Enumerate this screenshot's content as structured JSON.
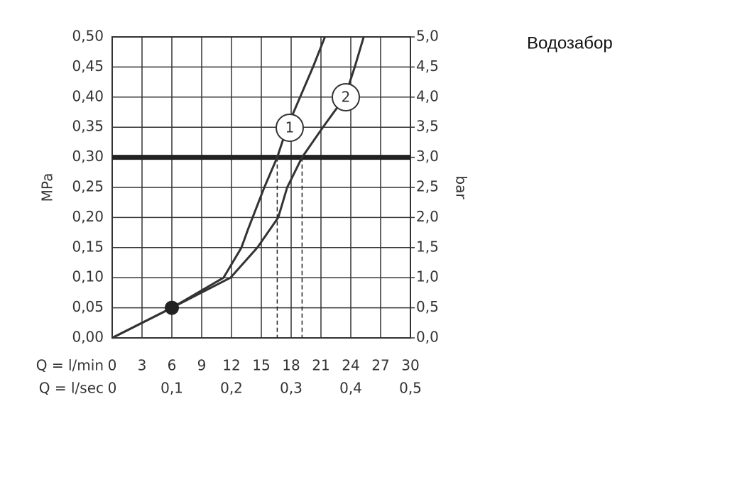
{
  "chart_data": {
    "type": "line",
    "title": "Водозабор",
    "ylabel": "MPa",
    "y2label": "bar",
    "xlabel": "Q = l/min",
    "x2label": "Q = l/sec",
    "xlim": [
      0,
      30
    ],
    "xticks": [
      0,
      3,
      6,
      9,
      12,
      15,
      18,
      21,
      24,
      27,
      30
    ],
    "x2lim": [
      0,
      0.5
    ],
    "x2ticks": [
      0,
      {
        "value": 0.1,
        "label": "0,1"
      },
      {
        "value": 0.2,
        "label": "0,2"
      },
      {
        "value": 0.3,
        "label": "0,3"
      },
      {
        "value": 0.4,
        "label": "0,4"
      },
      {
        "value": 0.5,
        "label": "0,5"
      }
    ],
    "ylim": [
      0,
      0.5
    ],
    "yticks": [
      {
        "value": 0,
        "label": "0,00"
      },
      {
        "value": 0.05,
        "label": "0,05"
      },
      {
        "value": 0.1,
        "label": "0,10"
      },
      {
        "value": 0.15,
        "label": "0,15"
      },
      {
        "value": 0.2,
        "label": "0,20"
      },
      {
        "value": 0.25,
        "label": "0,25"
      },
      {
        "value": 0.3,
        "label": "0,30"
      },
      {
        "value": 0.35,
        "label": "0,35"
      },
      {
        "value": 0.4,
        "label": "0,40"
      },
      {
        "value": 0.45,
        "label": "0,45"
      },
      {
        "value": 0.5,
        "label": "0,50"
      }
    ],
    "y2lim": [
      0,
      5
    ],
    "y2ticks": [
      {
        "value": 0,
        "label": "0,0"
      },
      {
        "value": 0.5,
        "label": "0,5"
      },
      {
        "value": 1,
        "label": "1,0"
      },
      {
        "value": 1.5,
        "label": "1,5"
      },
      {
        "value": 2,
        "label": "2,0"
      },
      {
        "value": 2.5,
        "label": "2,5"
      },
      {
        "value": 3,
        "label": "3,0"
      },
      {
        "value": 3.5,
        "label": "3,5"
      },
      {
        "value": 4,
        "label": "4,0"
      },
      {
        "value": 4.5,
        "label": "4,5"
      },
      {
        "value": 5,
        "label": "5,0"
      }
    ],
    "grid": true,
    "reference_line": 0.3,
    "drop_lines_x": [
      16.6,
      19.1
    ],
    "point": {
      "x": 6,
      "y": 0.05
    },
    "series": [
      {
        "name": "1",
        "color": "#333333",
        "x": [
          0,
          6,
          11.2,
          13,
          13.7,
          15.3,
          16.6,
          17.6,
          18.9,
          20.2,
          21.4
        ],
        "values": [
          0,
          0.05,
          0.1,
          0.15,
          0.182,
          0.25,
          0.3,
          0.35,
          0.4,
          0.45,
          0.5
        ]
      },
      {
        "name": "2",
        "color": "#333333",
        "x": [
          0,
          6,
          11.9,
          14.6,
          16.7,
          17.6,
          19.1,
          21.2,
          23.4,
          24.4,
          25.3
        ],
        "values": [
          0,
          0.05,
          0.1,
          0.15,
          0.2,
          0.25,
          0.3,
          0.35,
          0.4,
          0.45,
          0.5
        ]
      }
    ]
  }
}
